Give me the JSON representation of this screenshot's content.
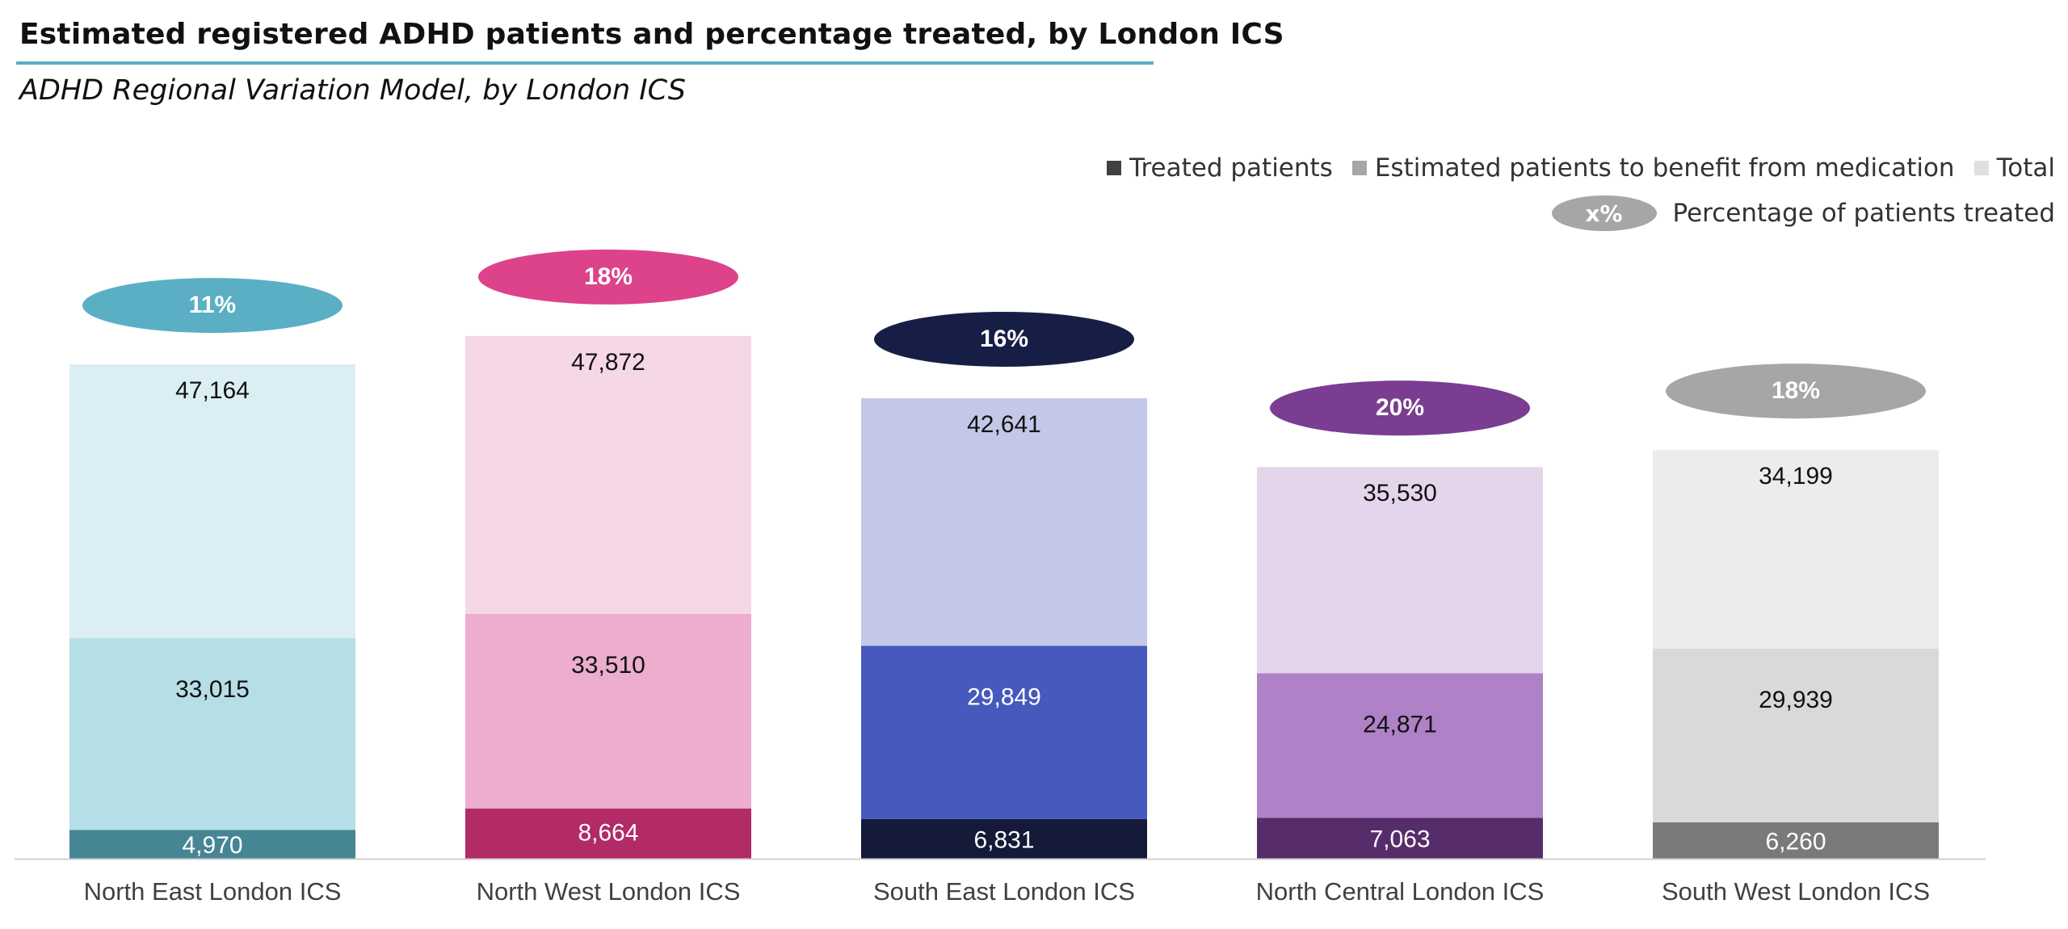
{
  "title": "Estimated registered ADHD patients and percentage treated, by London ICS",
  "subtitle": "ADHD Regional Variation Model, by London ICS",
  "legend": {
    "treated": "Treated patients",
    "benefit": "Estimated patients to benefit from medication",
    "total": "Total",
    "pct_symbol": "x%",
    "pct_label": "Percentage of patients treated"
  },
  "chart_data": {
    "type": "bar",
    "stacked": true,
    "categories": [
      "North East London ICS",
      "North West London ICS",
      "South East London ICS",
      "North Central London ICS",
      "South West London ICS"
    ],
    "series": [
      {
        "name": "Treated patients",
        "values": [
          4970,
          8664,
          6831,
          7063,
          6260
        ]
      },
      {
        "name": "Estimated patients to benefit from medication",
        "values": [
          33015,
          33510,
          29849,
          24871,
          29939
        ]
      },
      {
        "name": "Total",
        "values": [
          47164,
          47872,
          42641,
          35530,
          34199
        ]
      }
    ],
    "value_labels": [
      [
        "4,970",
        "33,015",
        "47,164"
      ],
      [
        "8,664",
        "33,510",
        "47,872"
      ],
      [
        "6,831",
        "29,849",
        "42,641"
      ],
      [
        "7,063",
        "24,871",
        "35,530"
      ],
      [
        "6,260",
        "29,939",
        "34,199"
      ]
    ],
    "percent_treated": [
      "11%",
      "18%",
      "16%",
      "20%",
      "18%"
    ],
    "legend_placement": "top-right",
    "grid": false,
    "colors": [
      {
        "treated": "#468594",
        "benefit": "#b6dee6",
        "total": "#dbeef3",
        "pill": "#5aafc4",
        "treated_label": "#ffffff",
        "benefit_label": "#111111"
      },
      {
        "treated": "#b22a66",
        "benefit": "#ecadcf",
        "total": "#f5d7e7",
        "pill": "#dc438a",
        "treated_label": "#ffffff",
        "benefit_label": "#111111"
      },
      {
        "treated": "#141a38",
        "benefit": "#4659bd",
        "total": "#c3c7e8",
        "pill": "#171e46",
        "treated_label": "#ffffff",
        "benefit_label": "#ffffff"
      },
      {
        "treated": "#572c6b",
        "benefit": "#af81c7",
        "total": "#e5d5ec",
        "pill": "#7a3d91",
        "treated_label": "#ffffff",
        "benefit_label": "#111111"
      },
      {
        "treated": "#7a7a7a",
        "benefit": "#d9d9d9",
        "total": "#ececec",
        "pill": "#a6a6a6",
        "treated_label": "#ffffff",
        "benefit_label": "#111111"
      }
    ],
    "legend_colors": {
      "treated": "#404040",
      "benefit": "#a6a6a6",
      "total": "#e0e0e0"
    }
  }
}
